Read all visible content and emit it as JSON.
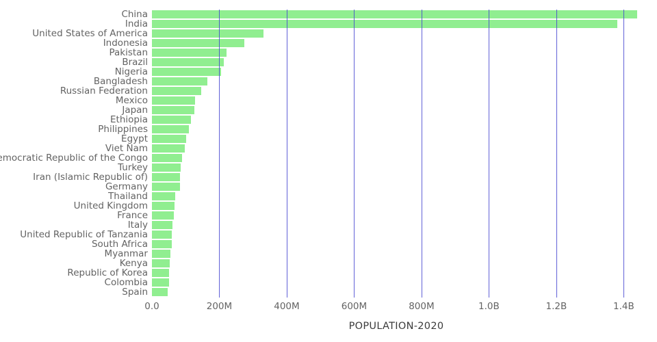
{
  "chart_data": {
    "type": "bar",
    "orientation": "horizontal",
    "title": "POPULATION-2020",
    "xlabel": "POPULATION-2020",
    "ylabel": "",
    "grid": true,
    "legend": false,
    "xmax_millions": 1450,
    "bar_color": "#90ee90",
    "grid_color": "#4444d0",
    "categories": [
      "China",
      "India",
      "United States of America",
      "Indonesia",
      "Pakistan",
      "Brazil",
      "Nigeria",
      "Bangladesh",
      "Russian Federation",
      "Mexico",
      "Japan",
      "Ethiopia",
      "Philippines",
      "Egypt",
      "Viet Nam",
      "Democratic Republic of the Congo",
      "Turkey",
      "Iran (Islamic Republic of)",
      "Germany",
      "Thailand",
      "United Kingdom",
      "France",
      "Italy",
      "United Republic of Tanzania",
      "South Africa",
      "Myanmar",
      "Kenya",
      "Republic of Korea",
      "Colombia",
      "Spain"
    ],
    "values_millions": [
      1439.3,
      1380.0,
      331.0,
      273.5,
      220.9,
      212.6,
      206.1,
      164.7,
      145.9,
      128.9,
      126.5,
      115.0,
      109.6,
      102.3,
      97.3,
      89.6,
      84.3,
      84.0,
      83.8,
      69.8,
      67.9,
      65.3,
      60.5,
      59.7,
      59.3,
      54.4,
      53.8,
      51.3,
      50.9,
      46.8
    ],
    "ticks": [
      {
        "value_millions": 0,
        "label": "0.0"
      },
      {
        "value_millions": 200,
        "label": "200M"
      },
      {
        "value_millions": 400,
        "label": "400M"
      },
      {
        "value_millions": 600,
        "label": "600M"
      },
      {
        "value_millions": 800,
        "label": "800M"
      },
      {
        "value_millions": 1000,
        "label": "1.0B"
      },
      {
        "value_millions": 1200,
        "label": "1.2B"
      },
      {
        "value_millions": 1400,
        "label": "1.4B"
      }
    ]
  }
}
